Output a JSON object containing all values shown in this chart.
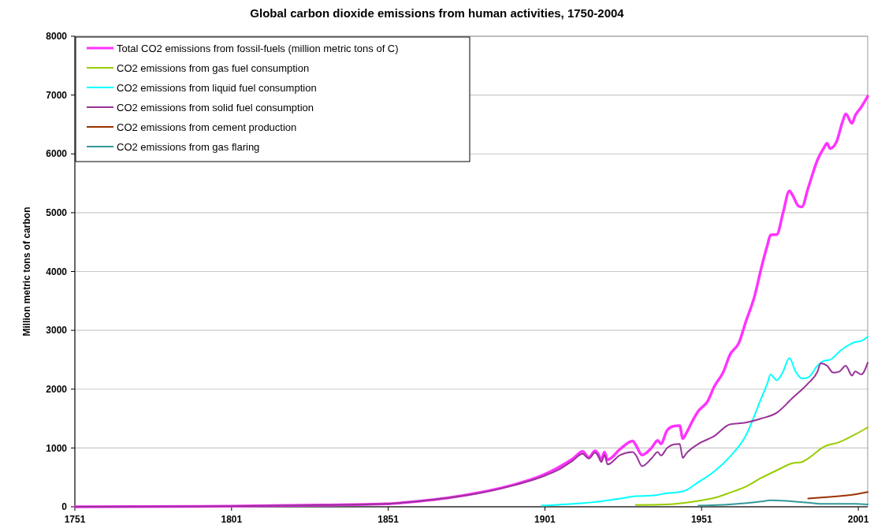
{
  "chart_data": {
    "type": "line",
    "title": "Global carbon dioxide emissions from human activities, 1750-2004",
    "ylabel": "Million metric tons of carbon",
    "xlim": [
      1751,
      2004
    ],
    "xticks": [
      1751,
      1801,
      1851,
      1901,
      1951,
      2001
    ],
    "ylim": [
      0,
      8000
    ],
    "yticks": [
      0,
      1000,
      2000,
      3000,
      4000,
      5000,
      6000,
      7000,
      8000
    ],
    "grid": "y",
    "legend": "top left",
    "marker": "none",
    "line_style": "solid",
    "series": [
      {
        "name": "Total CO2 emissions from fossil-fuels (million metric tons of C)",
        "color": "#ff33ff",
        "x": [
          1751,
          1800,
          1830,
          1850,
          1860,
          1870,
          1880,
          1890,
          1900,
          1905,
          1910,
          1913,
          1915,
          1917,
          1918,
          1919,
          1920,
          1921,
          1925,
          1929,
          1930,
          1932,
          1935,
          1937,
          1938,
          1940,
          1942,
          1944,
          1945,
          1946,
          1948,
          1950,
          1953,
          1955,
          1958,
          1960,
          1963,
          1965,
          1968,
          1970,
          1972,
          1973,
          1975,
          1977,
          1979,
          1980,
          1982,
          1983,
          1985,
          1988,
          1990,
          1991,
          1992,
          1994,
          1996,
          1997,
          1999,
          2000,
          2002,
          2004
        ],
        "values": [
          0,
          10,
          30,
          50,
          90,
          150,
          240,
          360,
          530,
          660,
          820,
          940,
          840,
          950,
          900,
          800,
          930,
          800,
          980,
          1120,
          1050,
          880,
          1000,
          1130,
          1070,
          1300,
          1370,
          1380,
          1160,
          1240,
          1450,
          1630,
          1800,
          2040,
          2300,
          2580,
          2800,
          3130,
          3600,
          4050,
          4450,
          4620,
          4630,
          5000,
          5370,
          5300,
          5110,
          5100,
          5420,
          5900,
          6100,
          6180,
          6090,
          6200,
          6550,
          6680,
          6520,
          6650,
          6800,
          6980
        ]
      },
      {
        "name": "CO2 emissions from gas fuel consumption",
        "color": "#99cc00",
        "x": [
          1930,
          1940,
          1950,
          1955,
          1960,
          1965,
          1970,
          1975,
          1980,
          1983,
          1985,
          1990,
          1995,
          2000,
          2004
        ],
        "values": [
          30,
          40,
          100,
          150,
          240,
          340,
          490,
          620,
          740,
          760,
          820,
          1020,
          1100,
          1230,
          1350
        ]
      },
      {
        "name": "CO2 emissions from liquid fuel consumption",
        "color": "#00ffff",
        "x": [
          1900,
          1910,
          1920,
          1925,
          1930,
          1935,
          1940,
          1945,
          1950,
          1955,
          1960,
          1965,
          1970,
          1972,
          1973,
          1974,
          1975,
          1977,
          1979,
          1981,
          1983,
          1985,
          1988,
          1990,
          1992,
          1995,
          1997,
          2000,
          2002,
          2004
        ],
        "values": [
          20,
          50,
          100,
          140,
          180,
          190,
          230,
          260,
          420,
          600,
          850,
          1200,
          1840,
          2100,
          2250,
          2200,
          2150,
          2300,
          2530,
          2300,
          2180,
          2200,
          2400,
          2480,
          2500,
          2640,
          2720,
          2800,
          2820,
          2890
        ]
      },
      {
        "name": "CO2 emissions from solid fuel consumption",
        "color": "#993399",
        "x": [
          1751,
          1800,
          1830,
          1850,
          1860,
          1870,
          1880,
          1890,
          1900,
          1905,
          1910,
          1913,
          1915,
          1917,
          1918,
          1919,
          1920,
          1921,
          1925,
          1929,
          1930,
          1932,
          1935,
          1937,
          1938,
          1940,
          1942,
          1944,
          1945,
          1946,
          1950,
          1955,
          1960,
          1965,
          1970,
          1975,
          1980,
          1985,
          1988,
          1989,
          1991,
          1993,
          1995,
          1997,
          1999,
          2000,
          2002,
          2004
        ],
        "values": [
          0,
          10,
          30,
          50,
          90,
          150,
          230,
          350,
          510,
          620,
          790,
          900,
          820,
          920,
          860,
          760,
          880,
          720,
          880,
          930,
          880,
          690,
          820,
          930,
          870,
          1000,
          1060,
          1070,
          830,
          900,
          1070,
          1200,
          1400,
          1430,
          1500,
          1600,
          1850,
          2100,
          2300,
          2440,
          2400,
          2280,
          2300,
          2400,
          2230,
          2300,
          2250,
          2450
        ]
      },
      {
        "name": "CO2 emissions from cement production",
        "color": "#993300",
        "x": [
          1985,
          1990,
          2000,
          2004
        ],
        "values": [
          140,
          160,
          210,
          250
        ]
      },
      {
        "name": "CO2 emissions from gas flaring",
        "color": "#339999",
        "x": [
          1950,
          1960,
          1970,
          1973,
          1985,
          1990,
          2000,
          2004
        ],
        "values": [
          20,
          40,
          90,
          110,
          70,
          50,
          50,
          40
        ]
      }
    ]
  }
}
